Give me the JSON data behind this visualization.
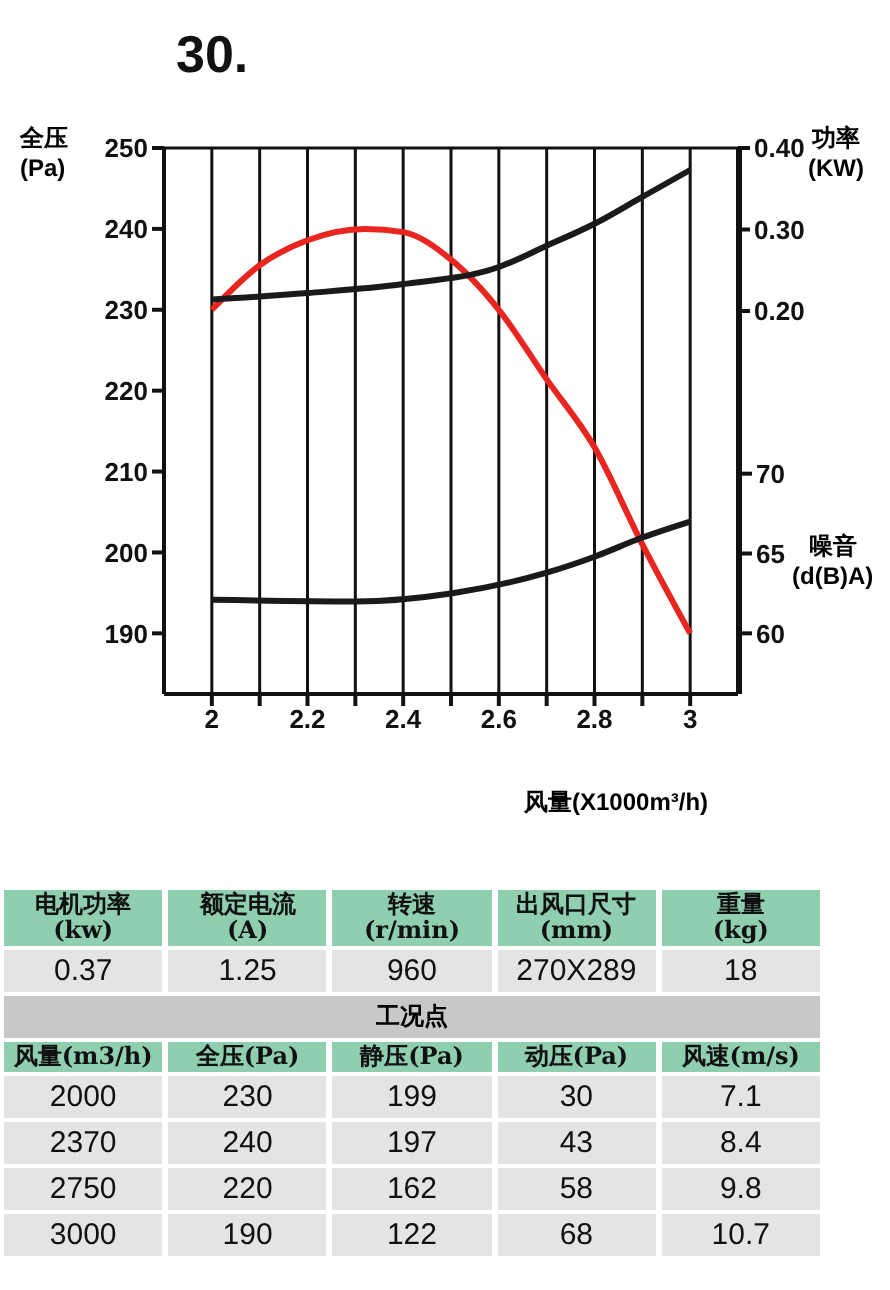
{
  "chart_data": [
    {
      "type": "line",
      "title": "30.",
      "xlabel": "风量(X1000m³/h)",
      "ylabel": "全压\n(Pa)",
      "y2label": "功率\n(KW)",
      "y3label": "噪音\n(d(B)A)",
      "xlim": [
        1.9,
        3.1
      ],
      "xticks": [
        2,
        {
          "value": 2.1,
          "label": null
        },
        2.2,
        {
          "value": 2.3,
          "label": null
        },
        2.4,
        {
          "value": 2.5,
          "label": null
        },
        2.6,
        {
          "value": 2.7,
          "label": null
        },
        2.8,
        {
          "value": 2.9,
          "label": null
        },
        3
      ],
      "ylim": [
        182.5,
        250
      ],
      "yticks": [
        190,
        200,
        210,
        220,
        230,
        240,
        250
      ],
      "y2lim": [
        -0.27,
        0.4
      ],
      "y2ticks": [
        {
          "value": 0.2,
          "label": "0.20"
        },
        {
          "value": 0.3,
          "label": "0.30"
        },
        {
          "value": 0.4,
          "label": "0.40"
        }
      ],
      "y3lim": [
        56.2,
        90.4
      ],
      "y3ticks": [
        60,
        65,
        70
      ],
      "grid": true,
      "legend": false,
      "marker": "none",
      "line_style": "solid",
      "series": [
        {
          "color": "#e8261f",
          "x": [
            2,
            2.1,
            2.2,
            2.32,
            2.4,
            2.5,
            2.6,
            2.7,
            2.8,
            2.9,
            3
          ],
          "values": [
            230,
            235.5,
            238.6,
            240,
            239.6,
            236.2,
            230,
            221.4,
            213,
            201,
            190
          ]
        },
        {
          "color": "#1a1a1a",
          "axis": "y2",
          "x": [
            2,
            2.2,
            2.4,
            2.6,
            2.7,
            2.8,
            2.9,
            3
          ],
          "values": [
            0.214,
            0.222,
            0.233,
            0.254,
            0.28,
            0.307,
            0.34,
            0.373
          ]
        },
        {
          "color": "#1a1a1a",
          "axis": "y3",
          "x": [
            2,
            2.3,
            2.5,
            2.7,
            2.8,
            2.9,
            3
          ],
          "values": [
            62.1,
            62,
            62.5,
            63.8,
            64.8,
            66,
            67
          ]
        }
      ]
    },
    {
      "type": "other",
      "annotations": [
        "电机功率\n(kw)",
        "额定电流\n(A)",
        "转速\n(r/min)",
        "出风口尺寸(mm)",
        "重量\n(kg)",
        "0.37",
        "1.25",
        "960",
        "270X289",
        "18",
        "工况点",
        "风量(m3/h)",
        "全压(Pa)",
        "静压(Pa)",
        "动压(Pa)",
        "风速(m/s)",
        "2000",
        "230",
        "199",
        "30",
        "7.1",
        "2370",
        "240",
        "197",
        "43",
        "8.4",
        "2750",
        "220",
        "162",
        "58",
        "9.8",
        "3000",
        "190",
        "122",
        "68",
        "10.7"
      ]
    }
  ]
}
